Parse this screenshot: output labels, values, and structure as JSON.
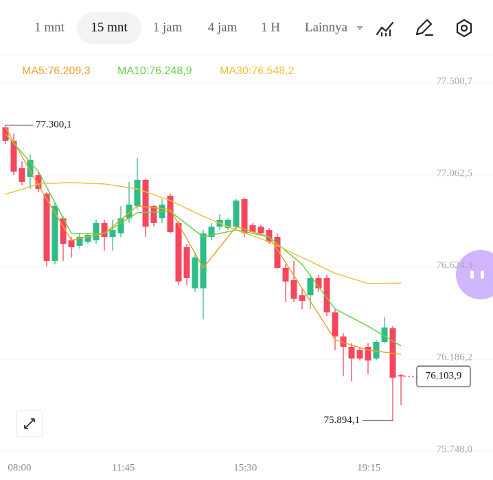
{
  "tabs": [
    "1 mnt",
    "15 mnt",
    "1 jam",
    "4 jam",
    "1 H",
    "Lainnya"
  ],
  "chart_data": {
    "type": "candlestick",
    "open": [
      77.29,
      77.226,
      77.095,
      77.053,
      77.062,
      76.974,
      76.654,
      76.857,
      76.752,
      76.726,
      76.745,
      76.752,
      76.834,
      76.768,
      76.785,
      76.857,
      76.915,
      77.04,
      76.915,
      76.857,
      76.964,
      76.834,
      76.719,
      76.523,
      76.523,
      76.768,
      76.817,
      76.811,
      76.817,
      76.948,
      76.824,
      76.817,
      76.801,
      76.768,
      76.621,
      76.562,
      76.49,
      76.49,
      76.572,
      76.572,
      76.409,
      76.294,
      76.245,
      76.229,
      76.245,
      76.189,
      76.268,
      76.333,
      76.11
    ],
    "high": [
      77.3001,
      77.259,
      77.128,
      77.161,
      77.079,
      76.981,
      76.932,
      76.866,
      76.768,
      76.785,
      76.785,
      76.85,
      76.85,
      76.85,
      76.915,
      77.03,
      77.144,
      77.046,
      76.922,
      76.948,
      76.974,
      76.843,
      76.735,
      76.686,
      76.801,
      76.834,
      76.876,
      76.857,
      76.948,
      76.955,
      76.834,
      76.824,
      76.811,
      76.785,
      76.637,
      76.654,
      76.523,
      76.588,
      76.588,
      76.588,
      76.425,
      76.31,
      76.262,
      76.245,
      76.262,
      76.278,
      76.386,
      76.343,
      76.114
    ],
    "low": [
      77.21,
      77.062,
      77.013,
      76.997,
      76.981,
      76.628,
      76.637,
      76.654,
      76.67,
      76.713,
      76.735,
      76.735,
      76.703,
      76.703,
      76.768,
      76.834,
      76.899,
      76.768,
      76.817,
      76.834,
      76.785,
      76.539,
      76.539,
      76.507,
      76.376,
      76.752,
      76.801,
      76.801,
      76.801,
      76.768,
      76.785,
      76.778,
      76.735,
      76.615,
      76.458,
      76.458,
      76.425,
      76.425,
      76.507,
      76.392,
      76.229,
      76.104,
      76.081,
      76.18,
      76.114,
      76.18,
      76.262,
      75.8941,
      75.967
    ],
    "close": [
      77.226,
      77.079,
      77.03,
      77.134,
      76.997,
      76.654,
      76.915,
      76.735,
      76.719,
      76.768,
      76.778,
      76.834,
      76.768,
      76.801,
      76.857,
      76.922,
      77.04,
      76.817,
      76.834,
      76.922,
      76.791,
      76.556,
      76.572,
      76.67,
      76.785,
      76.817,
      76.85,
      76.85,
      76.941,
      76.785,
      76.791,
      76.785,
      76.745,
      76.621,
      76.556,
      76.474,
      76.464,
      76.572,
      76.523,
      76.409,
      76.294,
      76.245,
      76.189,
      76.189,
      76.18,
      76.268,
      76.337,
      76.098,
      76.1039
    ],
    "up_color": "#2ebd85",
    "down_color": "#f6465d",
    "series": [
      {
        "name": "MA5:76.209,3",
        "color": "#f0a030",
        "x": [
          0,
          4,
          8,
          12,
          16,
          20,
          24,
          28,
          32,
          36,
          40,
          44,
          48
        ],
        "values": [
          77.291,
          77.013,
          76.752,
          76.785,
          76.915,
          76.899,
          76.621,
          76.817,
          76.768,
          76.523,
          76.278,
          76.229,
          76.2093
        ]
      },
      {
        "name": "MA10:76.248,9",
        "color": "#66d44a",
        "x": [
          0,
          4,
          8,
          12,
          16,
          20,
          24,
          28,
          32,
          36,
          40,
          44,
          48
        ],
        "values": [
          77.259,
          77.079,
          76.785,
          76.785,
          76.883,
          76.889,
          76.768,
          76.801,
          76.768,
          76.637,
          76.425,
          76.343,
          76.2489
        ]
      },
      {
        "name": "MA30:76.548,2",
        "color": "#eec23a",
        "x": [
          0,
          4,
          8,
          12,
          16,
          20,
          24,
          28,
          32,
          36,
          40,
          44,
          48
        ],
        "values": [
          76.971,
          77.02,
          77.027,
          77.02,
          76.997,
          76.941,
          76.866,
          76.801,
          76.745,
          76.67,
          76.595,
          76.546,
          76.5482
        ]
      }
    ],
    "ylim": [
      75.722,
      77.618
    ],
    "yticks": [
      {
        "value": 77.5007,
        "label": "77.500,7"
      },
      {
        "value": 77.0625,
        "label": "77.062,5"
      },
      {
        "value": 76.6243,
        "label": "76.624,3"
      },
      {
        "value": 76.1862,
        "label": "76.186,2"
      },
      {
        "value": 75.748,
        "label": "75.748,0"
      }
    ],
    "xticks": [
      {
        "value": 1.7,
        "label": "08:00"
      },
      {
        "value": 14.3,
        "label": "11:45"
      },
      {
        "value": 29.1,
        "label": "15:30"
      },
      {
        "value": 44.1,
        "label": "19:15"
      }
    ],
    "high_label": {
      "value": 77.3001,
      "label": "77.300,1"
    },
    "low_label": {
      "value": 75.8941,
      "label": "75.894,1"
    },
    "current_price": {
      "value": 76.1039,
      "label": "76.103,9"
    }
  }
}
